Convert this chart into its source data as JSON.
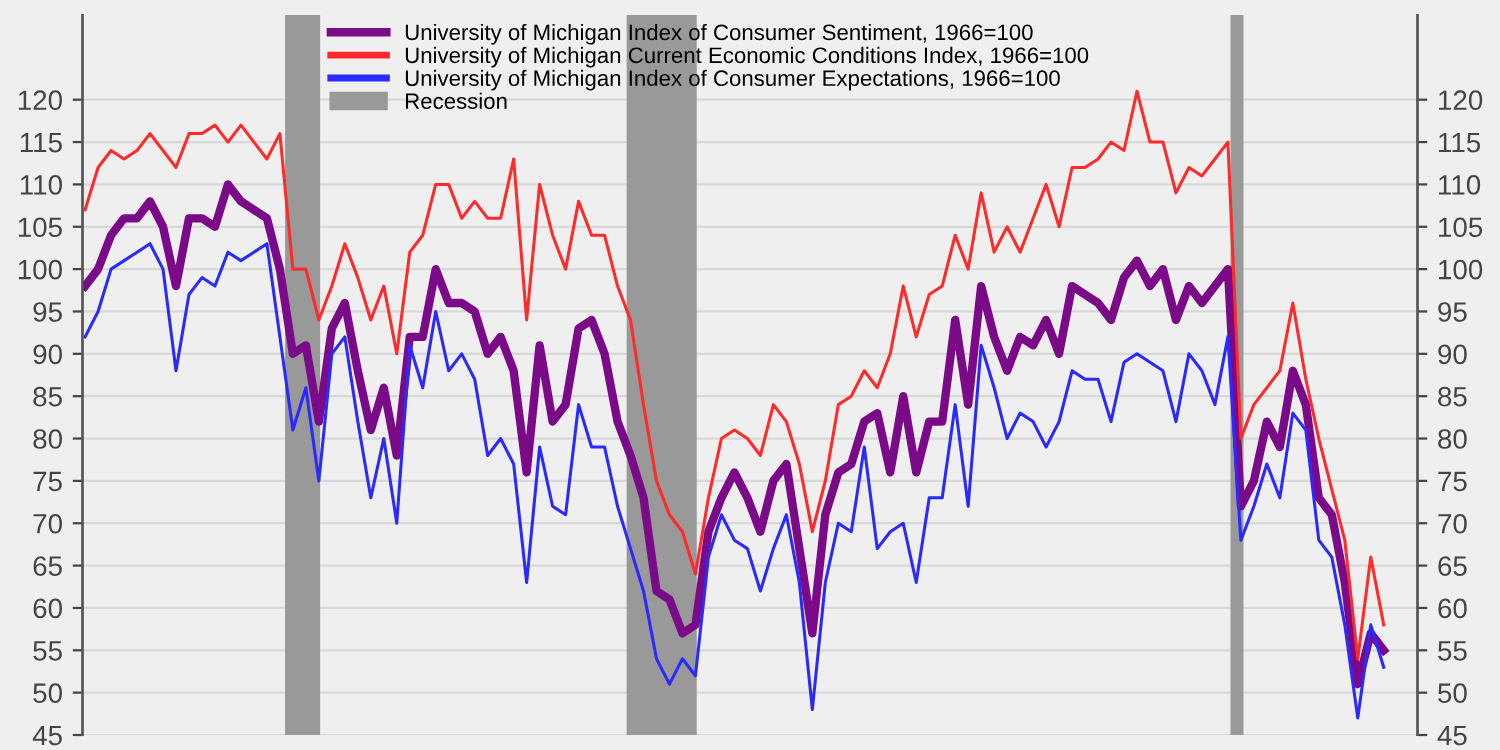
{
  "chart_data": {
    "type": "line",
    "categories": [
      null,
      null,
      null,
      null,
      null,
      null,
      null,
      null,
      null,
      null,
      null,
      null,
      null,
      null,
      null,
      null,
      null,
      null,
      null,
      null,
      null,
      null,
      null,
      null,
      null,
      null,
      null,
      null,
      null,
      null,
      null,
      null,
      null,
      null,
      null,
      null,
      null,
      null,
      null,
      null,
      null,
      null,
      null,
      null,
      null,
      null,
      null,
      null,
      null,
      null,
      null,
      null,
      null,
      null,
      null,
      null,
      null,
      null,
      null,
      null,
      null,
      null,
      null,
      null,
      null,
      null,
      null,
      null,
      null,
      null,
      null,
      null,
      null,
      null,
      null,
      null,
      null,
      null,
      null,
      null,
      null,
      null,
      null,
      null,
      null,
      null,
      null,
      null,
      null,
      null,
      null,
      null,
      null,
      null,
      null,
      null,
      null,
      null,
      null,
      null,
      null
    ],
    "annotations": [
      "Recession"
    ],
    "series": [
      {
        "name": "University of Michigan Index of Consumer Sentiment, 1966=100",
        "color": "#7a0a87",
        "values": [
          98,
          100,
          104,
          106,
          106,
          108,
          105,
          98,
          106,
          106,
          105,
          110,
          108,
          107,
          106,
          100,
          90,
          91,
          82,
          93,
          96,
          88,
          81,
          86,
          78,
          92,
          92,
          100,
          96,
          96,
          95,
          90,
          92,
          88,
          76,
          91,
          82,
          84,
          93,
          94,
          90,
          82,
          78,
          73,
          62,
          61,
          57,
          58,
          69,
          73,
          76,
          73,
          69,
          75,
          77,
          67,
          57,
          71,
          76,
          77,
          82,
          83,
          76,
          85,
          76,
          82,
          82,
          94,
          84,
          98,
          92,
          88,
          92,
          91,
          94,
          90,
          98,
          97,
          96,
          94,
          99,
          101,
          98,
          100,
          94,
          98,
          96,
          98,
          100,
          72,
          75,
          82,
          79,
          88,
          84,
          73,
          71,
          63,
          51,
          57,
          55
        ]
      },
      {
        "name": "University of Michigan Current Economic Conditions Index, 1966=100",
        "color": "#ff2a2a",
        "values": [
          107,
          112,
          114,
          113,
          114,
          116,
          114,
          112,
          116,
          116,
          117,
          115,
          117,
          115,
          113,
          116,
          100,
          100,
          94,
          98,
          103,
          99,
          94,
          98,
          90,
          102,
          104,
          110,
          110,
          106,
          108,
          106,
          106,
          113,
          94,
          110,
          104,
          100,
          108,
          104,
          104,
          98,
          94,
          84,
          75,
          71,
          69,
          64,
          73,
          80,
          81,
          80,
          78,
          84,
          82,
          77,
          69,
          75,
          84,
          85,
          88,
          86,
          90,
          98,
          92,
          97,
          98,
          104,
          100,
          109,
          102,
          105,
          102,
          106,
          110,
          105,
          112,
          112,
          113,
          115,
          114,
          121,
          115,
          115,
          109,
          112,
          111,
          113,
          115,
          80,
          84,
          86,
          88,
          96,
          87,
          80,
          74,
          68,
          54,
          66,
          58
        ]
      },
      {
        "name": "University of Michigan Index of Consumer Expectations, 1966=100",
        "color": "#2a2aff",
        "values": [
          92,
          95,
          100,
          101,
          102,
          103,
          100,
          88,
          97,
          99,
          98,
          102,
          101,
          102,
          103,
          92,
          81,
          86,
          75,
          90,
          92,
          82,
          73,
          80,
          70,
          91,
          86,
          95,
          88,
          90,
          87,
          78,
          80,
          77,
          63,
          79,
          72,
          71,
          84,
          79,
          79,
          72,
          67,
          62,
          54,
          51,
          54,
          52,
          66,
          71,
          68,
          67,
          62,
          67,
          71,
          63,
          48,
          63,
          70,
          69,
          79,
          67,
          69,
          70,
          63,
          73,
          73,
          84,
          72,
          91,
          86,
          80,
          83,
          82,
          79,
          82,
          88,
          87,
          87,
          82,
          89,
          90,
          89,
          88,
          82,
          90,
          88,
          84,
          92,
          68,
          72,
          77,
          73,
          83,
          81,
          68,
          66,
          58,
          47,
          58,
          53
        ]
      }
    ],
    "ylim": [
      45,
      130
    ],
    "yticks": [
      45,
      50,
      55,
      60,
      65,
      70,
      75,
      80,
      85,
      90,
      95,
      100,
      105,
      110,
      115,
      120
    ],
    "y2lim": [
      45,
      130
    ],
    "y2ticks": [
      45,
      50,
      55,
      60,
      65,
      70,
      75,
      80,
      85,
      90,
      95,
      100,
      105,
      110,
      115,
      120
    ],
    "grid": "y",
    "legend": "top",
    "marker": "none",
    "line_style": "solid"
  }
}
